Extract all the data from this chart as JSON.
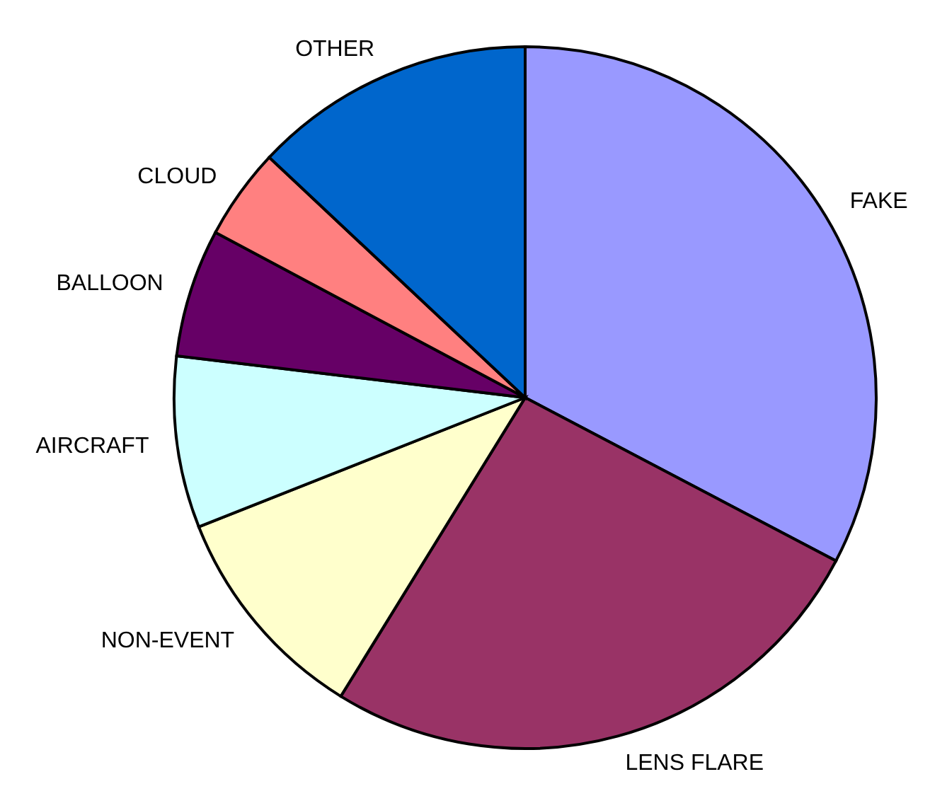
{
  "chart_data": {
    "type": "pie",
    "categories": [
      "FAKE",
      "LENS FLARE",
      "NON-EVENT",
      "AIRCRAFT",
      "BALLOON",
      "CLOUD",
      "OTHER"
    ],
    "values": [
      32.7,
      26.1,
      10.2,
      7.9,
      5.9,
      4.2,
      13.0
    ],
    "colors": [
      "#9999ff",
      "#993366",
      "#ffffcc",
      "#ccffff",
      "#660066",
      "#ff8080",
      "#0066cc"
    ],
    "legend": false
  }
}
